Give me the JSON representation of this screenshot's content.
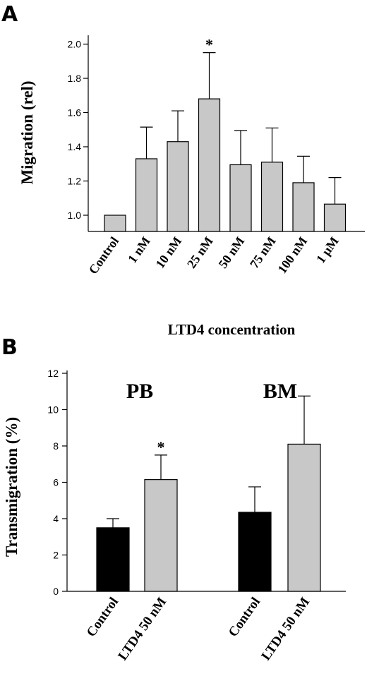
{
  "chart_data": [
    {
      "panel": "A",
      "type": "bar",
      "title": "",
      "xlabel": "LTD4 concentration",
      "ylabel": "Migration (rel)",
      "ylim": [
        0.9,
        2.0
      ],
      "yticks": [
        1.0,
        1.2,
        1.4,
        1.6,
        1.8,
        2.0
      ],
      "ytick_labels": [
        "1.0",
        "1.2",
        "1.4",
        "1.6",
        "1.8",
        "2.0"
      ],
      "categories": [
        "Control",
        "1 nM",
        "10 nM",
        "25 nM",
        "50 nM",
        "75 nM",
        "100 nM",
        "1 μM"
      ],
      "values": [
        1.0,
        1.33,
        1.43,
        1.68,
        1.295,
        1.31,
        1.19,
        1.065
      ],
      "errors": [
        0.0,
        0.185,
        0.18,
        0.27,
        0.2,
        0.2,
        0.155,
        0.155
      ],
      "annotations": [
        {
          "category": "25 nM",
          "text": "*"
        }
      ],
      "bar_color": "#c8c8c8"
    },
    {
      "panel": "B",
      "type": "bar",
      "title": "",
      "xlabel": "",
      "ylabel": "Transmigration (%)",
      "ylim": [
        0,
        12
      ],
      "yticks": [
        0,
        2,
        4,
        6,
        8,
        10,
        12
      ],
      "ytick_labels": [
        "0",
        "2",
        "4",
        "6",
        "8",
        "10",
        "12"
      ],
      "groups": [
        {
          "label": "PB",
          "categories": [
            "Control",
            "LTD4 50 nM"
          ],
          "values": [
            3.5,
            6.15
          ],
          "errors": [
            0.5,
            1.35
          ],
          "annotations": [
            "",
            "*"
          ]
        },
        {
          "label": "BM",
          "categories": [
            "Control",
            "LTD4 50 nM"
          ],
          "values": [
            4.35,
            8.1
          ],
          "errors": [
            1.4,
            2.65
          ],
          "annotations": [
            "",
            ""
          ]
        }
      ],
      "colors": {
        "Control": "#000000",
        "LTD4 50 nM": "#c8c8c8"
      }
    }
  ]
}
